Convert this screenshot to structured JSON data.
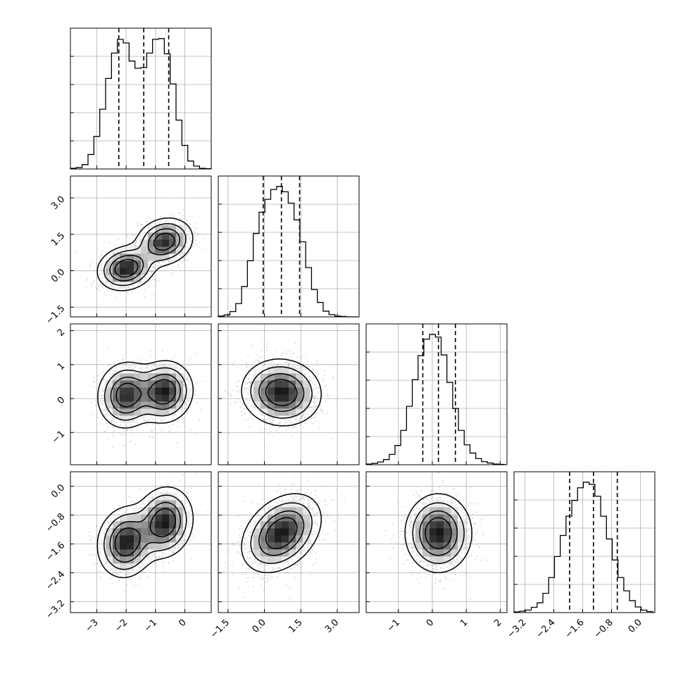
{
  "chart_data": {
    "type": "corner",
    "title": "",
    "n_params": 4,
    "grid": true,
    "params": [
      {
        "range": [
          -3.9,
          0.9
        ],
        "ticks": [
          -3,
          -2,
          -1,
          0
        ],
        "tick_labels": [
          "−3",
          "−2",
          "−1",
          "0"
        ],
        "quantiles": [
          -2.25,
          -1.4,
          -0.55
        ],
        "histogram": {
          "bin_edges": [
            -3.9,
            -3.7,
            -3.5,
            -3.3,
            -3.1,
            -2.9,
            -2.7,
            -2.5,
            -2.3,
            -2.1,
            -1.9,
            -1.7,
            -1.5,
            -1.3,
            -1.1,
            -0.9,
            -0.7,
            -0.5,
            -0.3,
            -0.1,
            0.1,
            0.3,
            0.5,
            0.7,
            0.9
          ],
          "counts": [
            2,
            4,
            12,
            40,
            90,
            165,
            250,
            320,
            358,
            348,
            298,
            278,
            280,
            320,
            358,
            360,
            318,
            235,
            135,
            65,
            22,
            8,
            2,
            1
          ]
        }
      },
      {
        "range": [
          -1.9,
          3.9
        ],
        "ticks": [
          -1.5,
          0.0,
          1.5,
          3.0
        ],
        "tick_labels": [
          "−1.5",
          "0.0",
          "1.5",
          "3.0"
        ],
        "quantiles": [
          -0.05,
          0.7,
          1.45
        ],
        "histogram": {
          "bin_edges": [
            -1.9,
            -1.66,
            -1.42,
            -1.18,
            -0.94,
            -0.7,
            -0.46,
            -0.22,
            0.02,
            0.26,
            0.5,
            0.74,
            0.98,
            1.22,
            1.46,
            1.7,
            1.94,
            2.18,
            2.42,
            2.66,
            2.9,
            3.14,
            3.38,
            3.62,
            3.86
          ],
          "counts": [
            2,
            5,
            14,
            35,
            80,
            148,
            220,
            276,
            310,
            336,
            344,
            330,
            300,
            256,
            198,
            130,
            72,
            38,
            15,
            6,
            2,
            1,
            0,
            0
          ]
        }
      },
      {
        "range": [
          -1.95,
          2.2
        ],
        "ticks": [
          -1,
          0,
          1,
          2
        ],
        "tick_labels": [
          "−1",
          "0",
          "1",
          "2"
        ],
        "quantiles": [
          -0.28,
          0.18,
          0.68
        ],
        "histogram": {
          "bin_edges": [
            -1.95,
            -1.78,
            -1.61,
            -1.44,
            -1.27,
            -1.1,
            -0.93,
            -0.76,
            -0.59,
            -0.42,
            -0.25,
            -0.08,
            0.09,
            0.26,
            0.43,
            0.6,
            0.77,
            0.94,
            1.11,
            1.28,
            1.45,
            1.62,
            1.79,
            1.96,
            2.13
          ],
          "counts": [
            2,
            4,
            8,
            15,
            30,
            56,
            100,
            170,
            248,
            318,
            366,
            380,
            372,
            320,
            240,
            164,
            100,
            58,
            34,
            18,
            9,
            5,
            2,
            1
          ]
        }
      },
      {
        "range": [
          -3.5,
          0.4
        ],
        "ticks": [
          -3.2,
          -2.4,
          -1.6,
          -0.8,
          0.0
        ],
        "tick_labels": [
          "−3.2",
          "−2.4",
          "−1.6",
          "−0.8",
          "0.0"
        ],
        "quantiles": [
          -1.96,
          -1.3,
          -0.64
        ],
        "histogram": {
          "bin_edges": [
            -3.5,
            -3.34,
            -3.18,
            -3.02,
            -2.86,
            -2.7,
            -2.54,
            -2.38,
            -2.22,
            -2.06,
            -1.9,
            -1.74,
            -1.58,
            -1.42,
            -1.26,
            -1.1,
            -0.94,
            -0.78,
            -0.62,
            -0.46,
            -0.3,
            -0.14,
            0.02,
            0.18,
            0.34
          ],
          "counts": [
            2,
            4,
            7,
            15,
            28,
            55,
            100,
            160,
            220,
            275,
            320,
            356,
            372,
            366,
            332,
            275,
            210,
            150,
            100,
            62,
            34,
            16,
            7,
            3
          ]
        }
      }
    ],
    "pair_panels": [
      {
        "row": 1,
        "col": 0,
        "components": [
          {
            "mean": [
              -2.0,
              0.1
            ],
            "sd": [
              0.45,
              0.42
            ],
            "rho": 0.15,
            "weight": 0.5
          },
          {
            "mean": [
              -0.7,
              1.2
            ],
            "sd": [
              0.45,
              0.45
            ],
            "rho": 0.15,
            "weight": 0.5
          }
        ]
      },
      {
        "row": 2,
        "col": 0,
        "components": [
          {
            "mean": [
              -2.0,
              0.1
            ],
            "sd": [
              0.45,
              0.45
            ],
            "rho": 0.05,
            "weight": 0.5
          },
          {
            "mean": [
              -0.7,
              0.2
            ],
            "sd": [
              0.45,
              0.42
            ],
            "rho": 0.05,
            "weight": 0.5
          }
        ]
      },
      {
        "row": 2,
        "col": 1,
        "components": [
          {
            "mean": [
              0.7,
              0.18
            ],
            "sd": [
              0.75,
              0.45
            ],
            "rho": -0.05,
            "weight": 1.0
          }
        ]
      },
      {
        "row": 3,
        "col": 0,
        "components": [
          {
            "mean": [
              -2.0,
              -1.55
            ],
            "sd": [
              0.45,
              0.45
            ],
            "rho": 0.1,
            "weight": 0.5
          },
          {
            "mean": [
              -0.7,
              -1.0
            ],
            "sd": [
              0.45,
              0.45
            ],
            "rho": 0.1,
            "weight": 0.5
          }
        ]
      },
      {
        "row": 3,
        "col": 1,
        "components": [
          {
            "mean": [
              0.7,
              -1.3
            ],
            "sd": [
              0.75,
              0.5
            ],
            "rho": 0.35,
            "weight": 1.0
          }
        ]
      },
      {
        "row": 3,
        "col": 2,
        "components": [
          {
            "mean": [
              0.18,
              -1.3
            ],
            "sd": [
              0.45,
              0.5
            ],
            "rho": 0.0,
            "weight": 1.0
          }
        ]
      }
    ],
    "contour_levels": [
      0.25,
      0.5,
      0.75,
      0.92
    ],
    "colors": {
      "line": "#000000",
      "grid": "#b0b0b0",
      "scatter": "#8a8a8a",
      "density_dark": "#1a1a1a"
    }
  }
}
